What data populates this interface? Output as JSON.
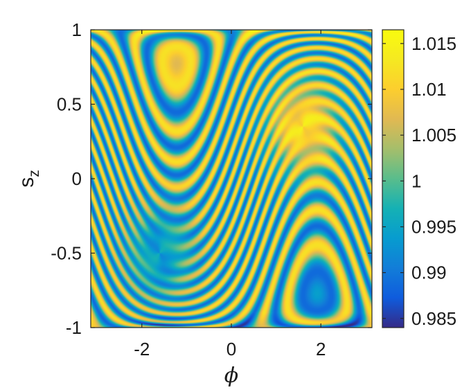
{
  "chart_data": {
    "type": "heatmap",
    "title": "",
    "xlabel": "ϕ",
    "ylabel": "s",
    "ylabel_subscript": "z",
    "xlim": [
      -3.1416,
      3.1416
    ],
    "ylim": [
      -1,
      1
    ],
    "x_ticks": [
      -2,
      0,
      2
    ],
    "x_tick_labels": [
      "-2",
      "0",
      "2"
    ],
    "y_ticks": [
      -1,
      -0.5,
      0,
      0.5,
      1
    ],
    "y_tick_labels": [
      "-1",
      "-0.5",
      "0",
      "0.5",
      "1"
    ],
    "colorbar": {
      "min": 0.984,
      "max": 1.0165,
      "ticks": [
        0.985,
        0.99,
        0.995,
        1,
        1.005,
        1.01,
        1.015
      ],
      "tick_labels": [
        "0.985",
        "0.99",
        "0.995",
        "1",
        "1.005",
        "1.01",
        "1.015"
      ],
      "colormap": "parula"
    },
    "field": {
      "description": "Filamented spiral structure; high-value vortex centred near (phi 1.6, s_z 0.35), low-value vortex centred near (phi -1.6, s_z -0.5)",
      "high_center": [
        1.6,
        0.35
      ],
      "low_center": [
        -1.6,
        -0.5
      ],
      "peak_value": 1.012,
      "trough_value": 0.994
    },
    "grid": false,
    "legend": "none"
  }
}
